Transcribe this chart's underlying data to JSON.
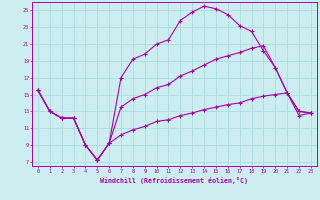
{
  "xlabel": "Windchill (Refroidissement éolien,°C)",
  "bg_color": "#cceef0",
  "line_color": "#aa00aa",
  "grid_color": "#aadddd",
  "xlim_min": -0.5,
  "xlim_max": 23.5,
  "ylim_min": 6.5,
  "ylim_max": 26.0,
  "xticks": [
    0,
    1,
    2,
    3,
    4,
    5,
    6,
    7,
    8,
    9,
    10,
    11,
    12,
    13,
    14,
    15,
    16,
    17,
    18,
    19,
    20,
    21,
    22,
    23
  ],
  "yticks": [
    7,
    9,
    11,
    13,
    15,
    17,
    19,
    21,
    23,
    25
  ],
  "line1_x": [
    0,
    1,
    2,
    3,
    4,
    5,
    6,
    7,
    8,
    9,
    10,
    11,
    12,
    13,
    14,
    15,
    16,
    17,
    18,
    19,
    20,
    21,
    22,
    23
  ],
  "line1_y": [
    15.5,
    13.0,
    12.2,
    12.2,
    9.0,
    7.2,
    9.2,
    17.0,
    19.2,
    19.8,
    21.0,
    21.5,
    23.8,
    24.8,
    25.5,
    25.2,
    24.5,
    23.2,
    22.5,
    20.2,
    18.2,
    15.2,
    13.0,
    12.8
  ],
  "line2_x": [
    0,
    1,
    2,
    3,
    4,
    5,
    6,
    7,
    8,
    9,
    10,
    11,
    12,
    13,
    14,
    15,
    16,
    17,
    18,
    19,
    20,
    21,
    22,
    23
  ],
  "line2_y": [
    15.5,
    13.0,
    12.2,
    12.2,
    9.0,
    7.2,
    9.2,
    13.5,
    14.5,
    15.0,
    15.8,
    16.2,
    17.2,
    17.8,
    18.5,
    19.2,
    19.6,
    20.0,
    20.5,
    20.8,
    18.2,
    15.2,
    13.0,
    12.8
  ],
  "line3_x": [
    0,
    1,
    2,
    3,
    4,
    5,
    6,
    7,
    8,
    9,
    10,
    11,
    12,
    13,
    14,
    15,
    16,
    17,
    18,
    19,
    20,
    21,
    22,
    23
  ],
  "line3_y": [
    15.5,
    13.0,
    12.2,
    12.2,
    9.0,
    7.2,
    9.2,
    10.2,
    10.8,
    11.2,
    11.8,
    12.0,
    12.5,
    12.8,
    13.2,
    13.5,
    13.8,
    14.0,
    14.5,
    14.8,
    15.0,
    15.2,
    12.5,
    12.8
  ]
}
